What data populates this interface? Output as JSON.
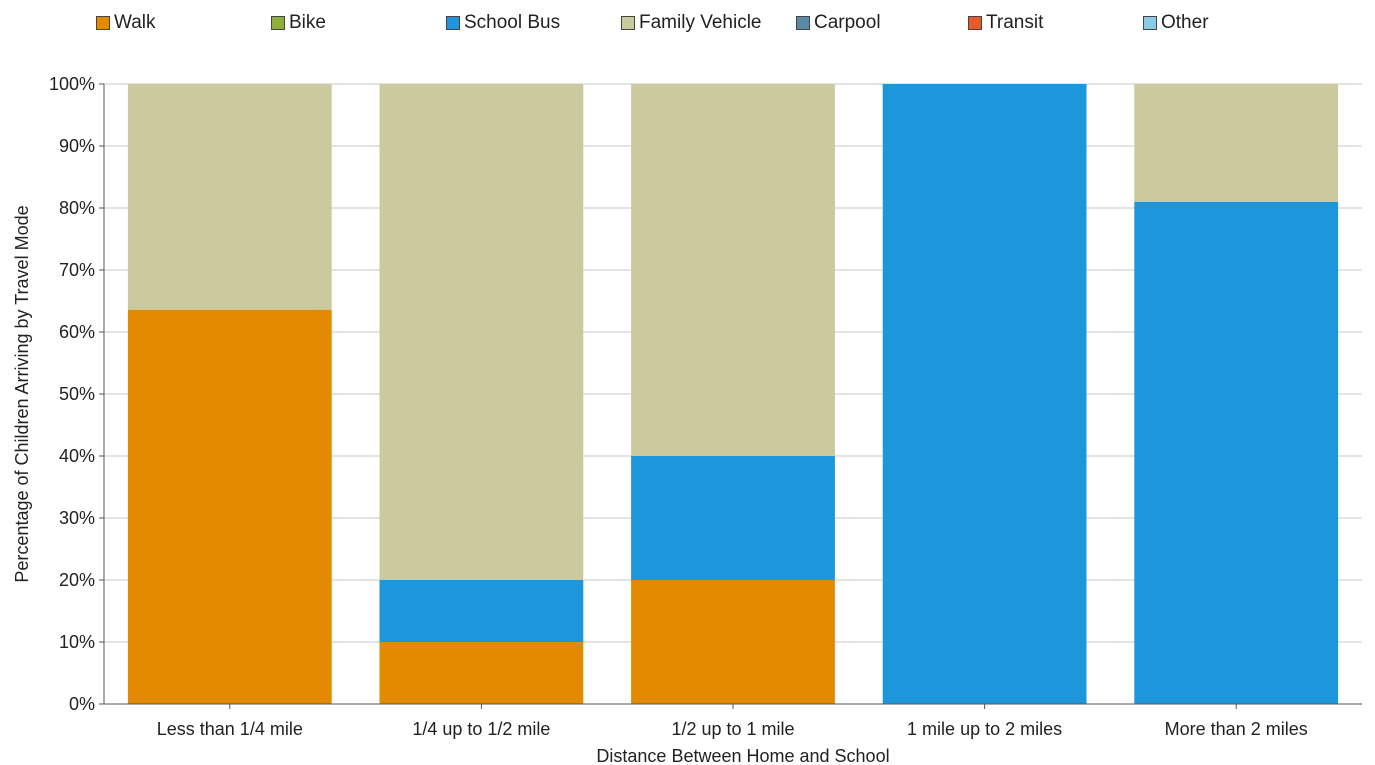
{
  "legend": {
    "items": [
      {
        "label": "Walk",
        "color": "#e38a00"
      },
      {
        "label": "Bike",
        "color": "#8fae3e"
      },
      {
        "label": "School Bus",
        "color": "#1e96dc"
      },
      {
        "label": "Family Vehicle",
        "color": "#cbca9f"
      },
      {
        "label": "Carpool",
        "color": "#5a8aa8"
      },
      {
        "label": "Transit",
        "color": "#e85a2a"
      },
      {
        "label": "Other",
        "color": "#88cce8"
      }
    ]
  },
  "chart_data": {
    "type": "bar",
    "stacked": true,
    "categories": [
      "Less than 1/4 mile",
      "1/4 up to 1/2 mile",
      "1/2 up to 1 mile",
      "1 mile up to 2 miles",
      "More than 2 miles"
    ],
    "series": [
      {
        "name": "Walk",
        "color": "#e38a00",
        "values": [
          63.6,
          10,
          20,
          0,
          0
        ]
      },
      {
        "name": "Bike",
        "color": "#8fae3e",
        "values": [
          0,
          0,
          0,
          0,
          0
        ]
      },
      {
        "name": "School Bus",
        "color": "#1e96dc",
        "values": [
          0,
          10,
          20,
          100,
          81
        ]
      },
      {
        "name": "Family Vehicle",
        "color": "#cbca9f",
        "values": [
          36.4,
          80,
          60,
          0,
          19
        ]
      },
      {
        "name": "Carpool",
        "color": "#5a8aa8",
        "values": [
          0,
          0,
          0,
          0,
          0
        ]
      },
      {
        "name": "Transit",
        "color": "#e85a2a",
        "values": [
          0,
          0,
          0,
          0,
          0
        ]
      },
      {
        "name": "Other",
        "color": "#88cce8",
        "values": [
          0,
          0,
          0,
          0,
          0
        ]
      }
    ],
    "ylim": [
      0,
      100
    ],
    "yticks": [
      "0%",
      "10%",
      "20%",
      "30%",
      "40%",
      "50%",
      "60%",
      "70%",
      "80%",
      "90%",
      "100%"
    ],
    "xlabel": "Distance Between Home and School",
    "ylabel": "Percentage of Children Arriving by Travel Mode",
    "grid": true,
    "legend_position": "top"
  }
}
